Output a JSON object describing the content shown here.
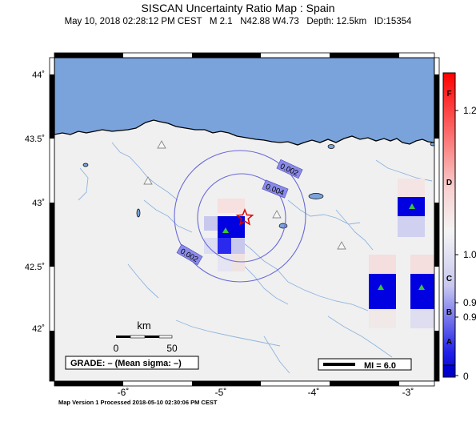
{
  "header": {
    "title": "SISCAN Uncertainty Ratio Map : Spain",
    "subtitle": "May 10, 2018 02:28:12 PM CEST   M 2.1   N42.88 W4.73   Depth: 12.5km   ID:15354"
  },
  "footer": "Map Version 1 Processed 2018-05-10 02:30:06 PM CEST",
  "axes": {
    "lat_labels": [
      "44˚",
      "43.5˚",
      "43˚",
      "42.5˚",
      "42˚"
    ],
    "lon_labels": [
      "-6˚",
      "-5˚",
      "-4˚",
      "-3˚"
    ]
  },
  "contours": [
    "0.002",
    "0.004",
    "0.002"
  ],
  "scalebar": {
    "unit": "km",
    "labels": [
      "0",
      "50"
    ]
  },
  "grade_text": "GRADE: – (Mean sigma: –)",
  "mi_legend": "MI = 6.0",
  "colorbar": {
    "letters": [
      "F",
      "D",
      "C",
      "B",
      "A"
    ],
    "values": [
      "1.2",
      "1.0",
      "0.9",
      "0.9",
      "0"
    ]
  },
  "colors": {
    "ocean": "#7aa3dc",
    "land": "#f0f0f0",
    "river": "#8fb4e0",
    "contour": "#6a6ad8",
    "cell_blue": "#0000e0",
    "epicenter": "#dd0000",
    "station_green": "#3cc43c"
  }
}
